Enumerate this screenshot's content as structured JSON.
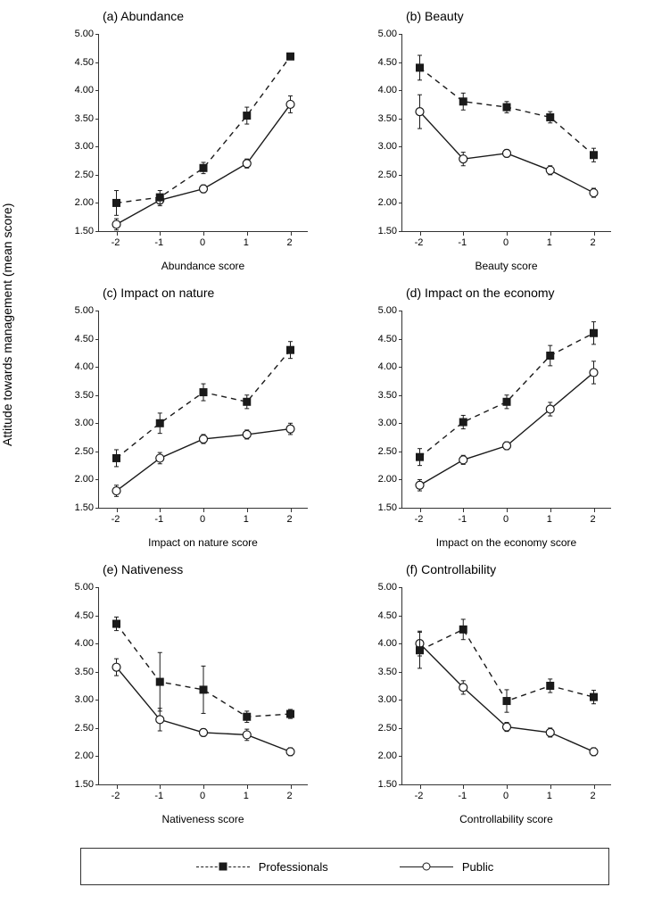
{
  "global_ylabel": "Attitude towards management (mean score)",
  "ylim": [
    1.5,
    5.0
  ],
  "ytick_step": 0.5,
  "xvalues": [
    -2,
    -1,
    0,
    1,
    2
  ],
  "colors": {
    "axis": "#333333",
    "prof_line": "#1a1a1a",
    "prof_marker_fill": "#1a1a1a",
    "public_line": "#1a1a1a",
    "public_marker_fill": "#ffffff",
    "public_marker_stroke": "#1a1a1a",
    "background": "#ffffff",
    "text": "#000000"
  },
  "style": {
    "prof_dash": "6,5",
    "line_width": 1.4,
    "marker_size": 9,
    "err_cap": 5,
    "title_fontsize": 14,
    "label_fontsize": 12,
    "tick_fontsize": 11
  },
  "legend": {
    "prof": "Professionals",
    "public": "Public"
  },
  "panels": [
    {
      "key": "a",
      "title": "(a) Abundance",
      "xlabel": "Abundance score",
      "prof": {
        "y": [
          2.0,
          2.1,
          2.62,
          3.55,
          4.6
        ],
        "err": [
          0.22,
          0.12,
          0.1,
          0.15,
          0.05
        ]
      },
      "public": {
        "y": [
          1.62,
          2.05,
          2.25,
          2.7,
          3.75
        ],
        "err": [
          0.1,
          0.1,
          0.07,
          0.08,
          0.15
        ]
      }
    },
    {
      "key": "b",
      "title": "(b) Beauty",
      "xlabel": "Beauty score",
      "prof": {
        "y": [
          4.4,
          3.8,
          3.7,
          3.52,
          2.85
        ],
        "err": [
          0.22,
          0.15,
          0.1,
          0.1,
          0.12
        ]
      },
      "public": {
        "y": [
          3.62,
          2.78,
          2.88,
          2.58,
          2.18
        ],
        "err": [
          0.3,
          0.12,
          0.07,
          0.08,
          0.08
        ]
      }
    },
    {
      "key": "c",
      "title": "(c) Impact on nature",
      "xlabel": "Impact on nature score",
      "prof": {
        "y": [
          2.38,
          3.0,
          3.55,
          3.38,
          4.3
        ],
        "err": [
          0.15,
          0.18,
          0.15,
          0.12,
          0.15
        ]
      },
      "public": {
        "y": [
          1.8,
          2.38,
          2.72,
          2.8,
          2.9
        ],
        "err": [
          0.1,
          0.1,
          0.08,
          0.08,
          0.1
        ]
      }
    },
    {
      "key": "d",
      "title": "(d) Impact on the economy",
      "xlabel": "Impact on the economy score",
      "prof": {
        "y": [
          2.4,
          3.02,
          3.38,
          4.2,
          4.6
        ],
        "err": [
          0.15,
          0.12,
          0.12,
          0.18,
          0.2
        ]
      },
      "public": {
        "y": [
          1.9,
          2.35,
          2.6,
          3.25,
          3.9
        ],
        "err": [
          0.1,
          0.08,
          0.07,
          0.12,
          0.2
        ]
      }
    },
    {
      "key": "e",
      "title": "(e) Nativeness",
      "xlabel": "Nativeness score",
      "prof": {
        "y": [
          4.35,
          3.32,
          3.18,
          2.7,
          2.75
        ],
        "err": [
          0.12,
          0.52,
          0.42,
          0.1,
          0.08
        ]
      },
      "public": {
        "y": [
          3.58,
          2.65,
          2.42,
          2.38,
          2.08
        ],
        "err": [
          0.15,
          0.2,
          0.07,
          0.1,
          0.07
        ]
      }
    },
    {
      "key": "f",
      "title": "(f) Controllability",
      "xlabel": "Controllability score",
      "prof": {
        "y": [
          3.88,
          4.25,
          2.98,
          3.25,
          3.05
        ],
        "err": [
          0.32,
          0.18,
          0.2,
          0.12,
          0.12
        ]
      },
      "public": {
        "y": [
          4.0,
          3.22,
          2.52,
          2.42,
          2.08
        ],
        "err": [
          0.22,
          0.12,
          0.08,
          0.08,
          0.07
        ]
      }
    }
  ]
}
